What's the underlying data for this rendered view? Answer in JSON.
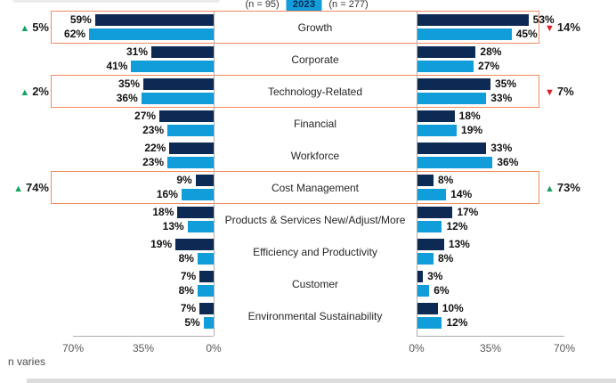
{
  "legend": {
    "left_n": "(n = 95)",
    "year_badge": "2023",
    "right_n": "(n = 277)"
  },
  "footnote": "n varies",
  "colors": {
    "navy": "#0d2a54",
    "light_blue": "#119dd9",
    "highlight_orange": "#f28a5f",
    "up_green": "#17a162",
    "down_red": "#e11b22",
    "axis_gray": "#adadad",
    "badge_bg": "#119dd9",
    "badge_text": "#0d2a54"
  },
  "chart_data": {
    "type": "bar",
    "subtype": "butterfly-horizontal-grouped",
    "title": "",
    "legend_year": "2023",
    "categories": [
      "Growth",
      "Corporate",
      "Technology-Related",
      "Financial",
      "Workforce",
      "Cost Management",
      "Products & Services New/Adjust/More",
      "Efficiency and Productivity",
      "Customer",
      "Environmental Sustainability"
    ],
    "panels": [
      {
        "side": "left",
        "n_label": "(n = 95)",
        "axis_ticks": [
          "70%",
          "35%",
          "0%"
        ],
        "axis_range": [
          0,
          70
        ],
        "series": [
          {
            "name": "navy-top-bar",
            "color": "#0d2a54",
            "values": [
              59,
              31,
              35,
              27,
              22,
              9,
              18,
              19,
              7,
              7
            ]
          },
          {
            "name": "blue-bottom-bar",
            "color": "#119dd9",
            "values": [
              62,
              41,
              36,
              23,
              23,
              16,
              13,
              8,
              8,
              5
            ]
          }
        ]
      },
      {
        "side": "right",
        "n_label": "(n = 277)",
        "axis_ticks": [
          "0%",
          "35%",
          "70%"
        ],
        "axis_range": [
          0,
          70
        ],
        "series": [
          {
            "name": "navy-top-bar",
            "color": "#0d2a54",
            "values": [
              53,
              28,
              35,
              18,
              33,
              8,
              17,
              13,
              3,
              10
            ]
          },
          {
            "name": "blue-bottom-bar",
            "color": "#119dd9",
            "values": [
              45,
              27,
              33,
              19,
              36,
              14,
              12,
              8,
              6,
              12
            ]
          }
        ]
      }
    ],
    "annotations": {
      "left": [
        {
          "row": 0,
          "direction": "up",
          "label": "5%"
        },
        {
          "row": 2,
          "direction": "up",
          "label": "2%"
        },
        {
          "row": 5,
          "direction": "up",
          "label": "74%"
        }
      ],
      "right": [
        {
          "row": 0,
          "direction": "down",
          "label": "14%"
        },
        {
          "row": 2,
          "direction": "down",
          "label": "7%"
        },
        {
          "row": 5,
          "direction": "up",
          "label": "73%"
        }
      ]
    },
    "highlighted_rows": [
      0,
      2,
      5
    ]
  }
}
